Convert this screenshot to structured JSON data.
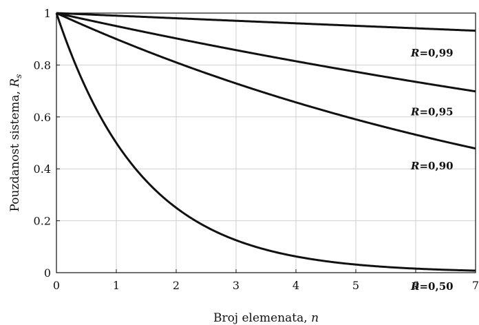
{
  "chart_data": {
    "type": "line",
    "title": "",
    "xlabel": "Broj elemenata, n",
    "ylabel": "Pouzdanost sistema, R_s",
    "xlim": [
      0,
      7
    ],
    "ylim": [
      0,
      1
    ],
    "xticks": [
      "0",
      "1",
      "2",
      "3",
      "4",
      "5",
      "6",
      "7"
    ],
    "yticks": [
      "0",
      "0.2",
      "0.4",
      "0.6",
      "0.8",
      "1"
    ],
    "grid": true,
    "series": [
      {
        "name": "R=0,99",
        "label_prefix": "R",
        "label_value": "=0,99",
        "base": 0.99,
        "x": [
          0,
          1,
          2,
          3,
          4,
          5,
          6,
          7
        ],
        "values": [
          1.0,
          0.99,
          0.9801,
          0.9703,
          0.9606,
          0.951,
          0.9415,
          0.9321
        ]
      },
      {
        "name": "R=0,95",
        "label_prefix": "R",
        "label_value": "=0,95",
        "base": 0.95,
        "x": [
          0,
          1,
          2,
          3,
          4,
          5,
          6,
          7
        ],
        "values": [
          1.0,
          0.95,
          0.9025,
          0.8574,
          0.8145,
          0.7738,
          0.7351,
          0.6983
        ]
      },
      {
        "name": "R=0,90",
        "label_prefix": "R",
        "label_value": "=0,90",
        "base": 0.9,
        "x": [
          0,
          1,
          2,
          3,
          4,
          5,
          6,
          7
        ],
        "values": [
          1.0,
          0.9,
          0.81,
          0.729,
          0.6561,
          0.5905,
          0.5314,
          0.4783
        ]
      },
      {
        "name": "R=0,50",
        "label_prefix": "R",
        "label_value": "=0,50",
        "base": 0.5,
        "x": [
          0,
          1,
          2,
          3,
          4,
          5,
          6,
          7
        ],
        "values": [
          1.0,
          0.5,
          0.25,
          0.125,
          0.0625,
          0.0313,
          0.0156,
          0.0078
        ]
      }
    ]
  }
}
